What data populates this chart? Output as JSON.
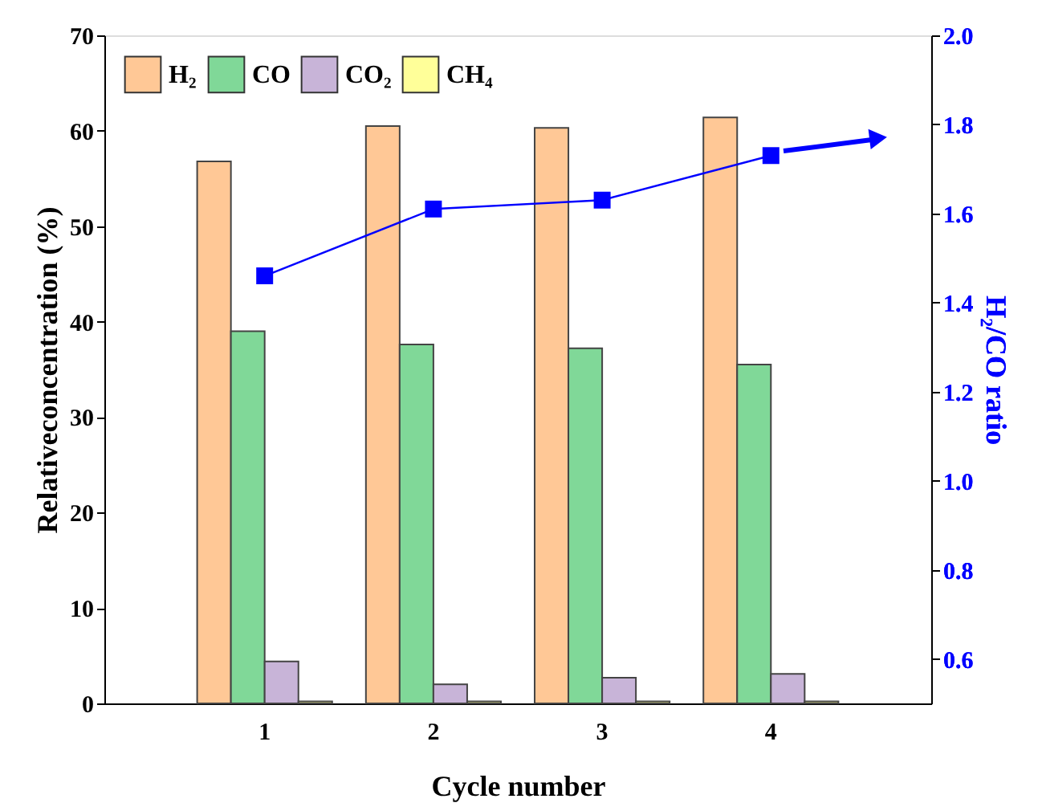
{
  "chart_data": {
    "type": "bar",
    "xlabel": "Cycle number",
    "ylabel": "Relativeconcentration (%)",
    "y2label": "H₂/CO ratio",
    "categories": [
      "1",
      "2",
      "3",
      "4"
    ],
    "ylim": [
      0,
      70
    ],
    "yticks": [
      0,
      10,
      20,
      30,
      40,
      50,
      60,
      70
    ],
    "y2lim": [
      0.5,
      2.0
    ],
    "y2ticks": [
      0.6,
      0.8,
      {
        "value": 1,
        "label": "1.0"
      },
      1.2,
      1.4,
      1.6,
      1.8,
      {
        "value": 2,
        "label": "2.0"
      }
    ],
    "legend": "top left",
    "grid": false,
    "series": [
      {
        "name": "H₂",
        "color": "#ffc896",
        "values": [
          56.8,
          60.5,
          60.3,
          61.4
        ]
      },
      {
        "name": "CO",
        "color": "#80d898",
        "values": [
          39.0,
          37.6,
          37.2,
          35.5
        ]
      },
      {
        "name": "CO₂",
        "color": "#c8b4d8",
        "values": [
          4.4,
          2.0,
          2.7,
          3.1
        ]
      },
      {
        "name": "CH₄",
        "color": "#ffff99",
        "values": [
          0.2,
          0.2,
          0.2,
          0.2
        ]
      },
      {
        "type": "line",
        "axis": "y2",
        "color": "#0000ff",
        "marker": "square",
        "values": [
          1.46,
          1.61,
          1.63,
          1.73
        ]
      }
    ]
  }
}
